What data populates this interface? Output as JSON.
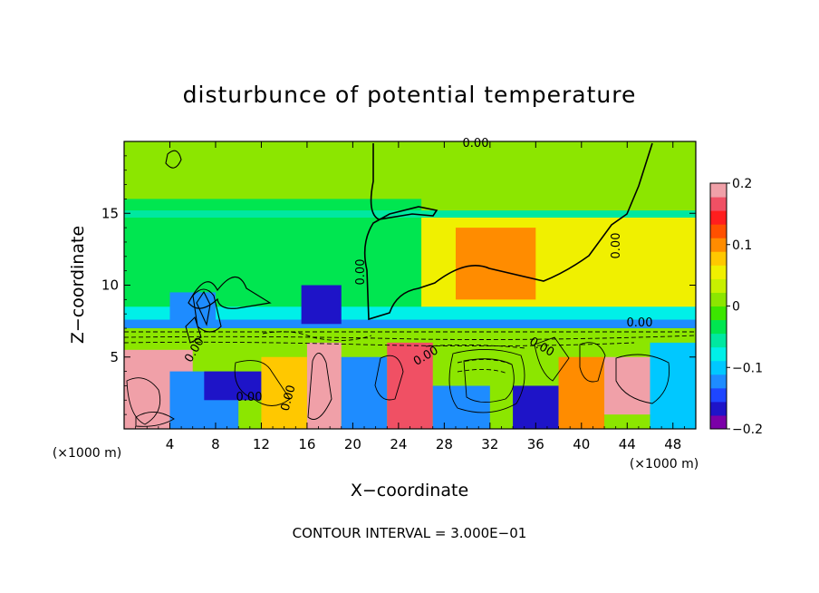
{
  "chart_data": {
    "type": "heatmap",
    "title": "disturbunce of potential temperature",
    "xlabel": "X−coordinate",
    "ylabel": "Z−coordinate",
    "x_unit": "(×1000 m)",
    "footer": "CONTOUR INTERVAL = 3.000E−01",
    "xlim": [
      0,
      50
    ],
    "ylim": [
      0,
      20
    ],
    "x_ticks": [
      4,
      8,
      12,
      16,
      20,
      24,
      28,
      32,
      36,
      40,
      44,
      48
    ],
    "y_ticks": [
      5,
      10,
      15
    ],
    "colorbar": {
      "range": [
        -0.2,
        0.2
      ],
      "tick_values": [
        0.2,
        0.1,
        0,
        -0.1,
        -0.2
      ],
      "tick_labels": [
        "0.2",
        "0.1",
        "0",
        "−0.1",
        "−0.2"
      ],
      "colors": [
        "#7b00a8",
        "#1e14c8",
        "#1e46ff",
        "#1e8cff",
        "#00c8ff",
        "#00f0e8",
        "#00e8a0",
        "#00e650",
        "#3ce600",
        "#8ce600",
        "#c8f000",
        "#f0f000",
        "#ffc800",
        "#ff8c00",
        "#ff5000",
        "#ff1e1e",
        "#f05064",
        "#f0a0a8"
      ]
    },
    "contour_labels": [
      "0.00",
      "0.00",
      "0.00",
      "0.00",
      "0.00",
      "0.00",
      "0.00",
      "0.00",
      "0.00"
    ],
    "cells": [
      {
        "x0": 0,
        "x1": 50,
        "z0": 0,
        "z1": 20,
        "v": 0.01
      },
      {
        "x0": 0,
        "x1": 26,
        "z0": 8,
        "z1": 16,
        "v": -0.03
      },
      {
        "x0": 26,
        "x1": 50,
        "z0": 7.5,
        "z1": 15,
        "v": 0.06
      },
      {
        "x0": 29,
        "x1": 36,
        "z0": 9,
        "z1": 14,
        "v": 0.11
      },
      {
        "x0": 0,
        "x1": 50,
        "z0": 14.7,
        "z1": 15.2,
        "v": -0.05
      },
      {
        "x0": 0,
        "x1": 50,
        "z0": 7,
        "z1": 8.5,
        "v": -0.08
      },
      {
        "x0": 0,
        "x1": 50,
        "z0": 7,
        "z1": 7.6,
        "v": -0.13
      },
      {
        "x0": 15.5,
        "x1": 19,
        "z0": 7.3,
        "z1": 10,
        "v": -0.17
      },
      {
        "x0": 4,
        "x1": 8,
        "z0": 7.3,
        "z1": 9.5,
        "v": -0.12
      },
      {
        "x0": 0,
        "x1": 50,
        "z0": 0,
        "z1": 7,
        "v": 0.0
      },
      {
        "x0": 0,
        "x1": 6,
        "z0": 0,
        "z1": 5.5,
        "v": 0.2
      },
      {
        "x0": 0,
        "x1": 4,
        "z0": 2,
        "z1": 5,
        "v": 0.18
      },
      {
        "x0": 4,
        "x1": 10,
        "z0": 0,
        "z1": 4,
        "v": -0.12
      },
      {
        "x0": 7,
        "x1": 12,
        "z0": 2,
        "z1": 4,
        "v": -0.16
      },
      {
        "x0": 12,
        "x1": 16,
        "z0": 0,
        "z1": 5,
        "v": 0.08
      },
      {
        "x0": 16,
        "x1": 19,
        "z0": 0,
        "z1": 6,
        "v": 0.2
      },
      {
        "x0": 19,
        "x1": 23,
        "z0": 0,
        "z1": 5,
        "v": -0.12
      },
      {
        "x0": 23,
        "x1": 27,
        "z0": 0,
        "z1": 6,
        "v": 0.17
      },
      {
        "x0": 27,
        "x1": 32,
        "z0": 0,
        "z1": 3,
        "v": -0.13
      },
      {
        "x0": 28,
        "x1": 36,
        "z0": 3,
        "z1": 6,
        "v": 0.02
      },
      {
        "x0": 34,
        "x1": 38,
        "z0": 0,
        "z1": 3,
        "v": -0.16
      },
      {
        "x0": 38,
        "x1": 42,
        "z0": 0,
        "z1": 5,
        "v": 0.09
      },
      {
        "x0": 42,
        "x1": 46,
        "z0": 1,
        "z1": 5,
        "v": 0.2
      },
      {
        "x0": 46,
        "x1": 50,
        "z0": 0,
        "z1": 6,
        "v": -0.1
      },
      {
        "x0": 0,
        "x1": 50,
        "z0": 6.3,
        "z1": 7,
        "v": 0.0
      }
    ]
  }
}
